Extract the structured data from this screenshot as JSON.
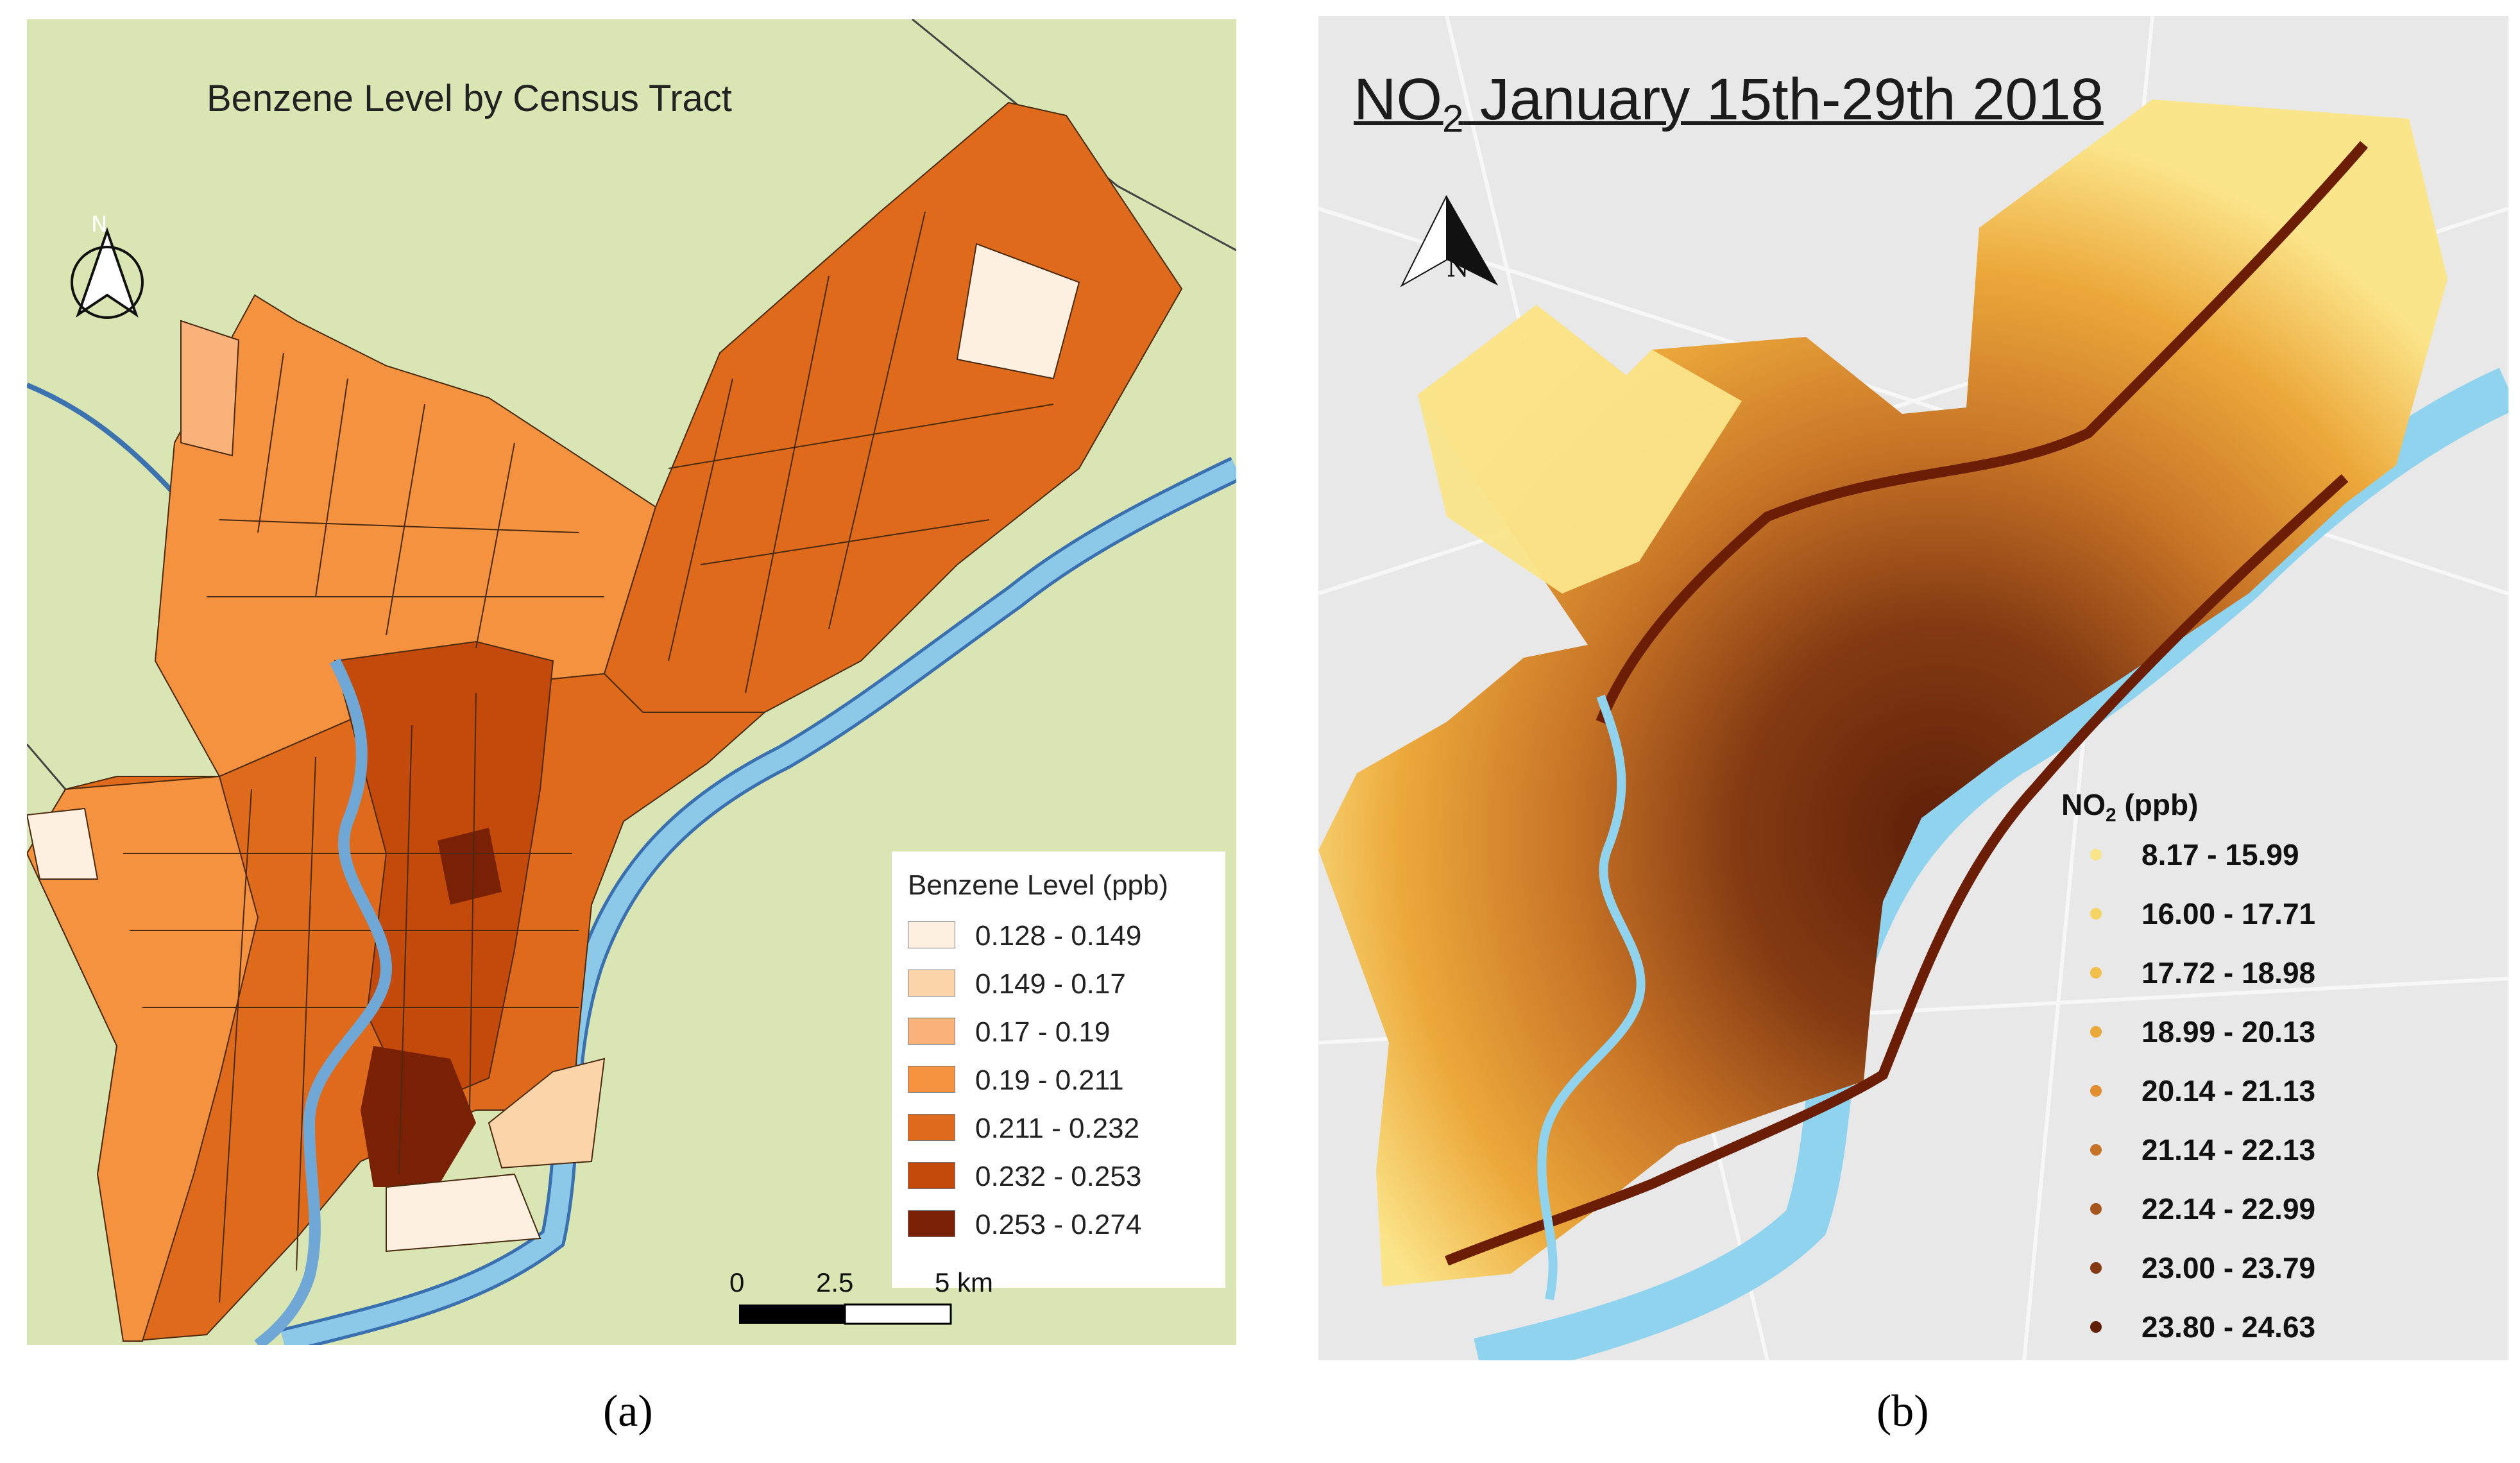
{
  "panel_a": {
    "title": "Benzene Level by Census Tract",
    "north_label": "N",
    "legend": {
      "title": "Benzene Level (ppb)",
      "classes": [
        {
          "label": "0.128 - 0.149",
          "color": "#fef0e1"
        },
        {
          "label": "0.149 - 0.17",
          "color": "#fcd4aa"
        },
        {
          "label": "0.17 - 0.19",
          "color": "#f8b27a"
        },
        {
          "label": "0.19 - 0.211",
          "color": "#f59240"
        },
        {
          "label": "0.211 - 0.232",
          "color": "#e06a1c"
        },
        {
          "label": "0.232 - 0.253",
          "color": "#c44a0c"
        },
        {
          "label": "0.253 - 0.274",
          "color": "#7a2005"
        }
      ]
    },
    "scale_bar": {
      "ticks": [
        "0",
        "2.5",
        "5 km"
      ]
    },
    "caption": "(a)"
  },
  "panel_b": {
    "title_prefix": "NO",
    "title_subscript": "2",
    "title_suffix": " January 15th-29th 2018",
    "north_label": "N",
    "legend": {
      "title_prefix": "NO",
      "title_subscript": "2",
      "title_suffix": " (ppb)",
      "classes": [
        {
          "label": "8.17 - 15.99",
          "color": "#fbe58a"
        },
        {
          "label": "16.00 - 17.71",
          "color": "#f6d463"
        },
        {
          "label": "17.72 - 18.98",
          "color": "#f2c04a"
        },
        {
          "label": "18.99 - 20.13",
          "color": "#eca93b"
        },
        {
          "label": "20.14 - 21.13",
          "color": "#e08e30"
        },
        {
          "label": "21.14 - 22.13",
          "color": "#c87426"
        },
        {
          "label": "22.14 - 22.99",
          "color": "#a6561c"
        },
        {
          "label": "23.00 - 23.79",
          "color": "#843b12"
        },
        {
          "label": "23.80 - 24.63",
          "color": "#5e1f08"
        }
      ]
    },
    "caption": "(b)"
  },
  "colors": {
    "land": "#d9e6b3",
    "water": "#8cc8e8",
    "river_outline": "#3b6ea8",
    "background_b": "#e8e8e8"
  }
}
